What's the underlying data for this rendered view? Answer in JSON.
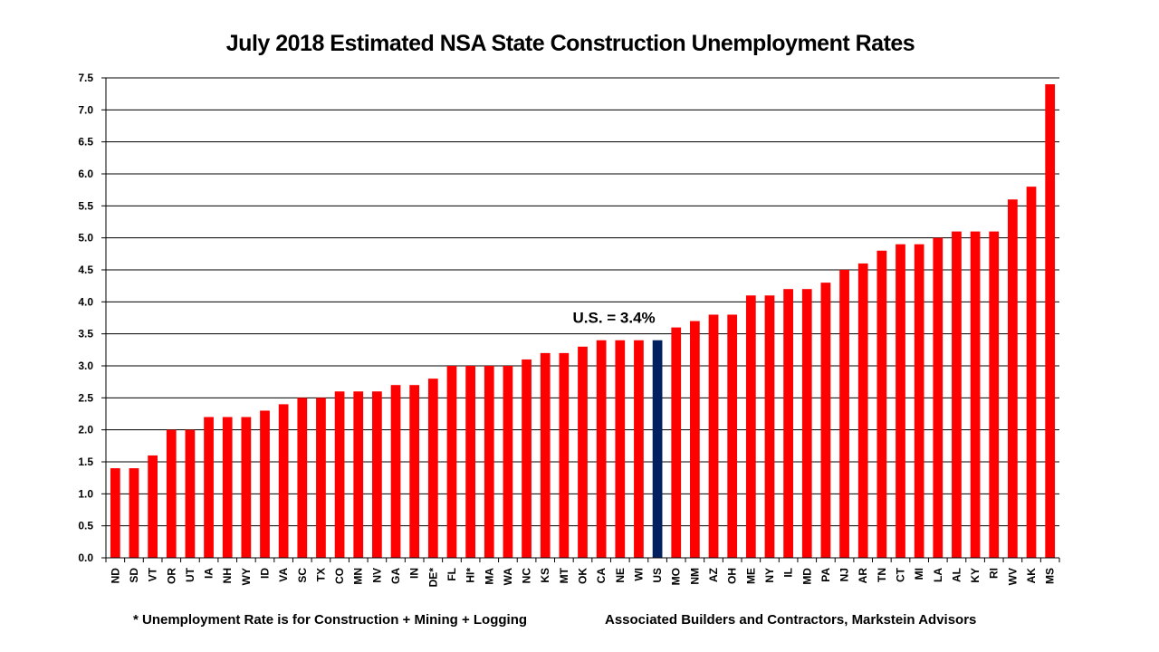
{
  "chart_data": {
    "type": "bar",
    "title": "July 2018 Estimated NSA State Construction Unemployment Rates",
    "xlabel": "",
    "ylabel": "",
    "ylim": [
      0,
      7.5
    ],
    "yticks": [
      "0.0",
      "0.5",
      "1.0",
      "1.5",
      "2.0",
      "2.5",
      "3.0",
      "3.5",
      "4.0",
      "4.5",
      "5.0",
      "5.5",
      "6.0",
      "6.5",
      "7.0",
      "7.5"
    ],
    "grid": true,
    "legend": "none",
    "categories": [
      "ND",
      "SD",
      "VT",
      "OR",
      "UT",
      "IA",
      "NH",
      "WY",
      "ID",
      "VA",
      "SC",
      "TX",
      "CO",
      "MN",
      "NV",
      "GA",
      "IN",
      "DE*",
      "FL",
      "HI*",
      "MA",
      "WA",
      "NC",
      "KS",
      "MT",
      "OK",
      "CA",
      "NE",
      "WI",
      "US",
      "MO",
      "NM",
      "AZ",
      "OH",
      "ME",
      "NY",
      "IL",
      "MD",
      "PA",
      "NJ",
      "AR",
      "TN",
      "CT",
      "MI",
      "LA",
      "AL",
      "KY",
      "RI",
      "WV",
      "AK",
      "MS"
    ],
    "values": [
      1.4,
      1.4,
      1.6,
      2.0,
      2.0,
      2.2,
      2.2,
      2.2,
      2.3,
      2.4,
      2.5,
      2.5,
      2.6,
      2.6,
      2.6,
      2.7,
      2.7,
      2.8,
      3.0,
      3.0,
      3.0,
      3.0,
      3.1,
      3.2,
      3.2,
      3.3,
      3.4,
      3.4,
      3.4,
      3.4,
      3.6,
      3.7,
      3.8,
      3.8,
      4.1,
      4.1,
      4.2,
      4.2,
      4.3,
      4.5,
      4.6,
      4.8,
      4.9,
      4.9,
      5.0,
      5.1,
      5.1,
      5.1,
      5.6,
      5.8,
      7.4
    ],
    "highlight_category": "US",
    "bar_color": "#ff0000",
    "highlight_color": "#002060",
    "annotation": {
      "text": "U.S. = 3.4%",
      "category": "US"
    }
  },
  "footnotes": {
    "left": "* Unemployment Rate is for Construction + Mining + Logging",
    "right": "Associated Builders and Contractors, Markstein Advisors"
  }
}
